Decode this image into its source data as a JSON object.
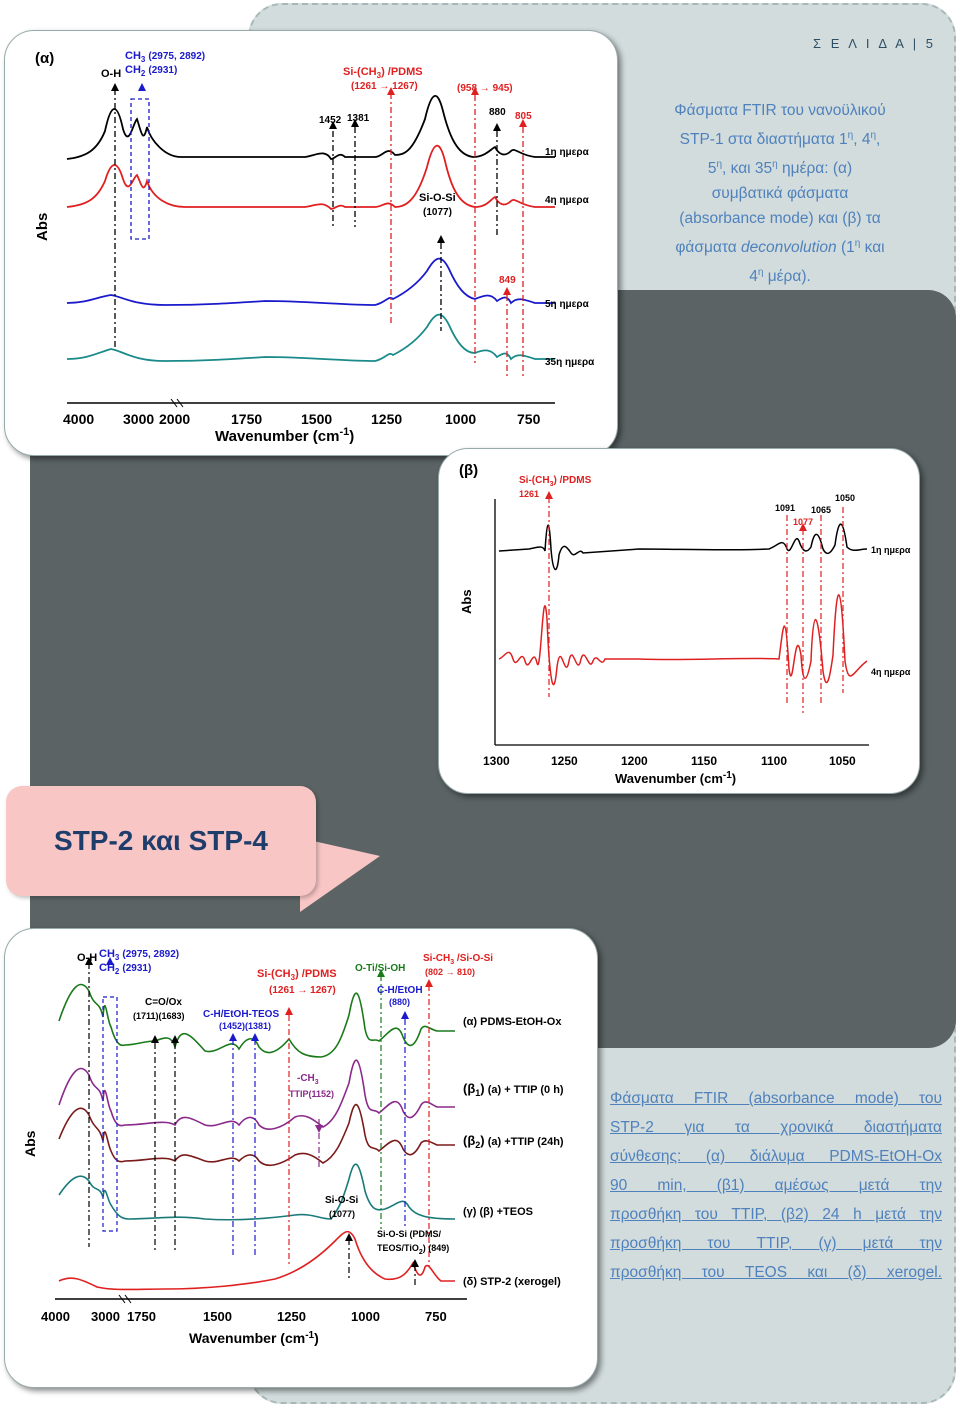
{
  "header": {
    "page_label": "Σ Ε Λ Ι Δ Α | 5"
  },
  "caption_top": {
    "line1": "Φάσματα FTIR του νανοϋλικού",
    "line2a": "STP-1 στα διαστήματα 1",
    "sup_eta": "η",
    "sep": ", 4",
    "line3a": "5",
    "line3b": ", και 35",
    "line3c": " ημέρα: (α)",
    "line4": "συμβατικά φάσματα",
    "line5": "(absorbance mode) και (β) τα",
    "line6a": "φάσματα ",
    "line6_italic": "deconvolution",
    "line6b": " (1",
    "line6c": " και",
    "line7a": "4",
    "line7b": " μέρα)."
  },
  "caption_bottom": {
    "lines": [
      "Φάσματα FTIR (absorbance mode) του",
      "STP-2 για τα χρονικά διαστήματα",
      "σύνθεσης: (α) διάλυμα PDMS-EtOH-Ox",
      "90 min, (β1) αμέσως μετά την",
      "προσθήκη του TTIP, (β2) 24 h μετά την",
      "προσθήκη του TTIP, (γ) μετά την",
      "προσθήκη του TEOS και (δ) xerogel."
    ]
  },
  "section_title": "STP-2 και STP-4",
  "chart_a": {
    "panel": "(α)",
    "ylabel": "Abs",
    "xlabel": "Wavenumber (cm",
    "xlabel_sup": "-1",
    "xlabel_end": ")",
    "ticks": [
      "4000",
      "3000",
      "2000",
      "1750",
      "1500",
      "1250",
      "1000",
      "750"
    ],
    "annotations": {
      "oh": "O-H",
      "ch3": "CH",
      "ch3_vals": "(2975, 2892)",
      "ch2": "CH",
      "ch2_vals": "(2931)",
      "sich3": "Si-(CH",
      "sich3_end": ") /PDMS",
      "sich3_range": "(1261",
      "sich3_range_end": "1267)",
      "si958": "(958",
      "si958_end": "945)",
      "n1452": "1452",
      "n1381": "1381",
      "n880": "880",
      "n805": "805",
      "siosi": "Si-O-Si",
      "n1077": "(1077)",
      "n849": "849"
    },
    "series": [
      "1η ημερα",
      "4η ημερα",
      "5η ημερα",
      "35η ημερα"
    ],
    "colors": {
      "s1": "#000000",
      "s2": "#e02020",
      "s3": "#1a1acc",
      "s4": "#1a8a8a"
    }
  },
  "chart_b": {
    "panel": "(β)",
    "ylabel": "Abs",
    "xlabel": "Wavenumber (cm",
    "xlabel_sup": "-1",
    "xlabel_end": ")",
    "ticks": [
      "1300",
      "1250",
      "1200",
      "1150",
      "1100",
      "1050"
    ],
    "annotations": {
      "sich3": "Si-(CH",
      "sich3_end": ") /PDMS",
      "n1261": "1261",
      "n1091": "1091",
      "n1077": "1077",
      "n1065": "1065",
      "n1050": "1050"
    },
    "series": [
      "1η ημερα",
      "4η ημερα"
    ]
  },
  "chart_c": {
    "ylabel": "Abs",
    "xlabel": "Wavenumber (cm",
    "xlabel_sup": "-1",
    "xlabel_end": ")",
    "ticks": [
      "4000",
      "3000",
      "1750",
      "1500",
      "1250",
      "1000",
      "750"
    ],
    "annotations": {
      "oh": "O-H",
      "ch3": "CH",
      "ch3_vals": "(2975, 2892)",
      "ch2": "CH",
      "ch2_vals": "(2931)",
      "co": "C=O/Ox",
      "co_vals": "(1711)(1683)",
      "chteos": "C-H/EtOH-TEOS",
      "chteos_vals": "(1452)(1381)",
      "sich3": "Si-(CH",
      "sich3_end": ") /PDMS",
      "sich3_range": "(1261",
      "sich3_range_end": "1267)",
      "oti": "O-Ti/Si-OH",
      "cheth": "C-H/EtOH",
      "n880": "(880)",
      "sich3b": "Si-CH",
      "sich3b_end": " /Si-O-Si",
      "n802": "(802",
      "n802_end": "810)",
      "ttip": "-CH",
      "ttip_vals": "TTIP(1152)",
      "siosi": "Si-O-Si",
      "n1077": "(1077)",
      "siosi2": "Si-O-Si (PDMS/",
      "siosi2b": "TEOS/TiO",
      "siosi2c": ") (849)"
    },
    "series_labels": [
      {
        "tag": "(α)",
        "text": "PDMS-EtOH-Ox"
      },
      {
        "tag": "(β",
        "sub": "1",
        "tag_end": ")",
        "text": "(a) + TTIP (0 h)"
      },
      {
        "tag": "(β",
        "sub": "2",
        "tag_end": ")",
        "text": "(a) +TTIP (24h)"
      },
      {
        "tag": "(γ)",
        "text": "(β) +TEOS"
      },
      {
        "tag": "(δ)",
        "text": "STP-2 (xerogel)"
      }
    ]
  }
}
